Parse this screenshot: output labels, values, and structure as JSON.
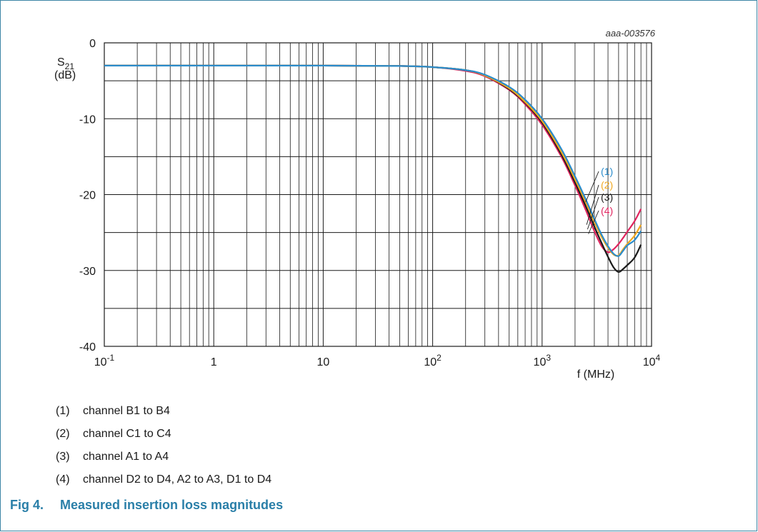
{
  "chart_data": {
    "type": "line",
    "code": "aaa-003576",
    "ylabel_main": "S",
    "ylabel_sub": "21",
    "ylabel_unit": "(dB)",
    "xlabel": "f (MHz)",
    "x_scale": "log",
    "xlim": [
      0.1,
      10000
    ],
    "ylim": [
      -40,
      0
    ],
    "grid": true,
    "yticks": [
      "0",
      "-10",
      "-20",
      "-30",
      "-40"
    ],
    "xticks": [
      {
        "base": "10",
        "exp": "-1"
      },
      {
        "base": "1",
        "exp": ""
      },
      {
        "base": "10",
        "exp": ""
      },
      {
        "base": "10",
        "exp": "2"
      },
      {
        "base": "10",
        "exp": "3"
      },
      {
        "base": "10",
        "exp": "4"
      }
    ],
    "series": [
      {
        "name": "(1)",
        "color": "#2a8ccc",
        "x": [
          0.1,
          1,
          10,
          50,
          100,
          200,
          300,
          500,
          700,
          1000,
          1500,
          2000,
          2500,
          3000,
          3500,
          4000,
          4500,
          5000,
          5500,
          6000,
          7000,
          8000
        ],
        "y": [
          -3.0,
          -3.0,
          -3.0,
          -3.05,
          -3.2,
          -3.6,
          -4.2,
          -5.8,
          -7.5,
          -10.0,
          -14.0,
          -17.6,
          -20.6,
          -23.2,
          -25.3,
          -26.8,
          -27.8,
          -28.1,
          -27.4,
          -26.7,
          -26.0,
          -24.8
        ]
      },
      {
        "name": "(2)",
        "color": "#f0a820",
        "x": [
          0.1,
          1,
          10,
          50,
          100,
          200,
          300,
          500,
          700,
          1000,
          1500,
          2000,
          2500,
          3000,
          3500,
          4000,
          4500,
          5000,
          5500,
          6000,
          7000,
          8000
        ],
        "y": [
          -3.0,
          -3.0,
          -3.0,
          -3.05,
          -3.2,
          -3.6,
          -4.3,
          -6.0,
          -7.8,
          -10.3,
          -14.4,
          -18.0,
          -21.0,
          -23.6,
          -25.6,
          -27.0,
          -27.9,
          -28.0,
          -27.2,
          -26.5,
          -25.4,
          -24.0
        ]
      },
      {
        "name": "(3)",
        "color": "#1a1a1a",
        "x": [
          0.1,
          1,
          10,
          50,
          100,
          200,
          300,
          500,
          700,
          1000,
          1500,
          2000,
          2500,
          3000,
          3500,
          4000,
          4500,
          5000,
          5500,
          6000,
          7000,
          8000
        ],
        "y": [
          -3.0,
          -3.0,
          -3.0,
          -3.05,
          -3.2,
          -3.6,
          -4.3,
          -6.1,
          -7.9,
          -10.5,
          -14.7,
          -18.4,
          -21.5,
          -24.2,
          -26.4,
          -28.2,
          -29.6,
          -30.2,
          -29.8,
          -29.3,
          -28.3,
          -26.6
        ]
      },
      {
        "name": "(4)",
        "color": "#e0245e",
        "x": [
          0.1,
          1,
          10,
          50,
          100,
          200,
          300,
          500,
          700,
          1000,
          1500,
          2000,
          2500,
          3000,
          3500,
          4000,
          4500,
          5000,
          5500,
          6000,
          7000,
          8000
        ],
        "y": [
          -3.0,
          -3.0,
          -3.0,
          -3.05,
          -3.2,
          -3.7,
          -4.4,
          -6.2,
          -8.1,
          -10.8,
          -15.0,
          -18.8,
          -22.0,
          -24.8,
          -26.8,
          -27.6,
          -27.2,
          -26.5,
          -25.7,
          -24.9,
          -23.5,
          -21.9
        ]
      }
    ]
  },
  "legend": [
    {
      "num": "(1)",
      "text": "channel B1 to B4"
    },
    {
      "num": "(2)",
      "text": "channel C1 to C4"
    },
    {
      "num": "(3)",
      "text": "channel A1 to A4"
    },
    {
      "num": "(4)",
      "text": "channel D2 to D4, A2 to A3, D1 to D4"
    }
  ],
  "caption": {
    "fig": "Fig 4.",
    "title": "Measured insertion loss magnitudes"
  }
}
